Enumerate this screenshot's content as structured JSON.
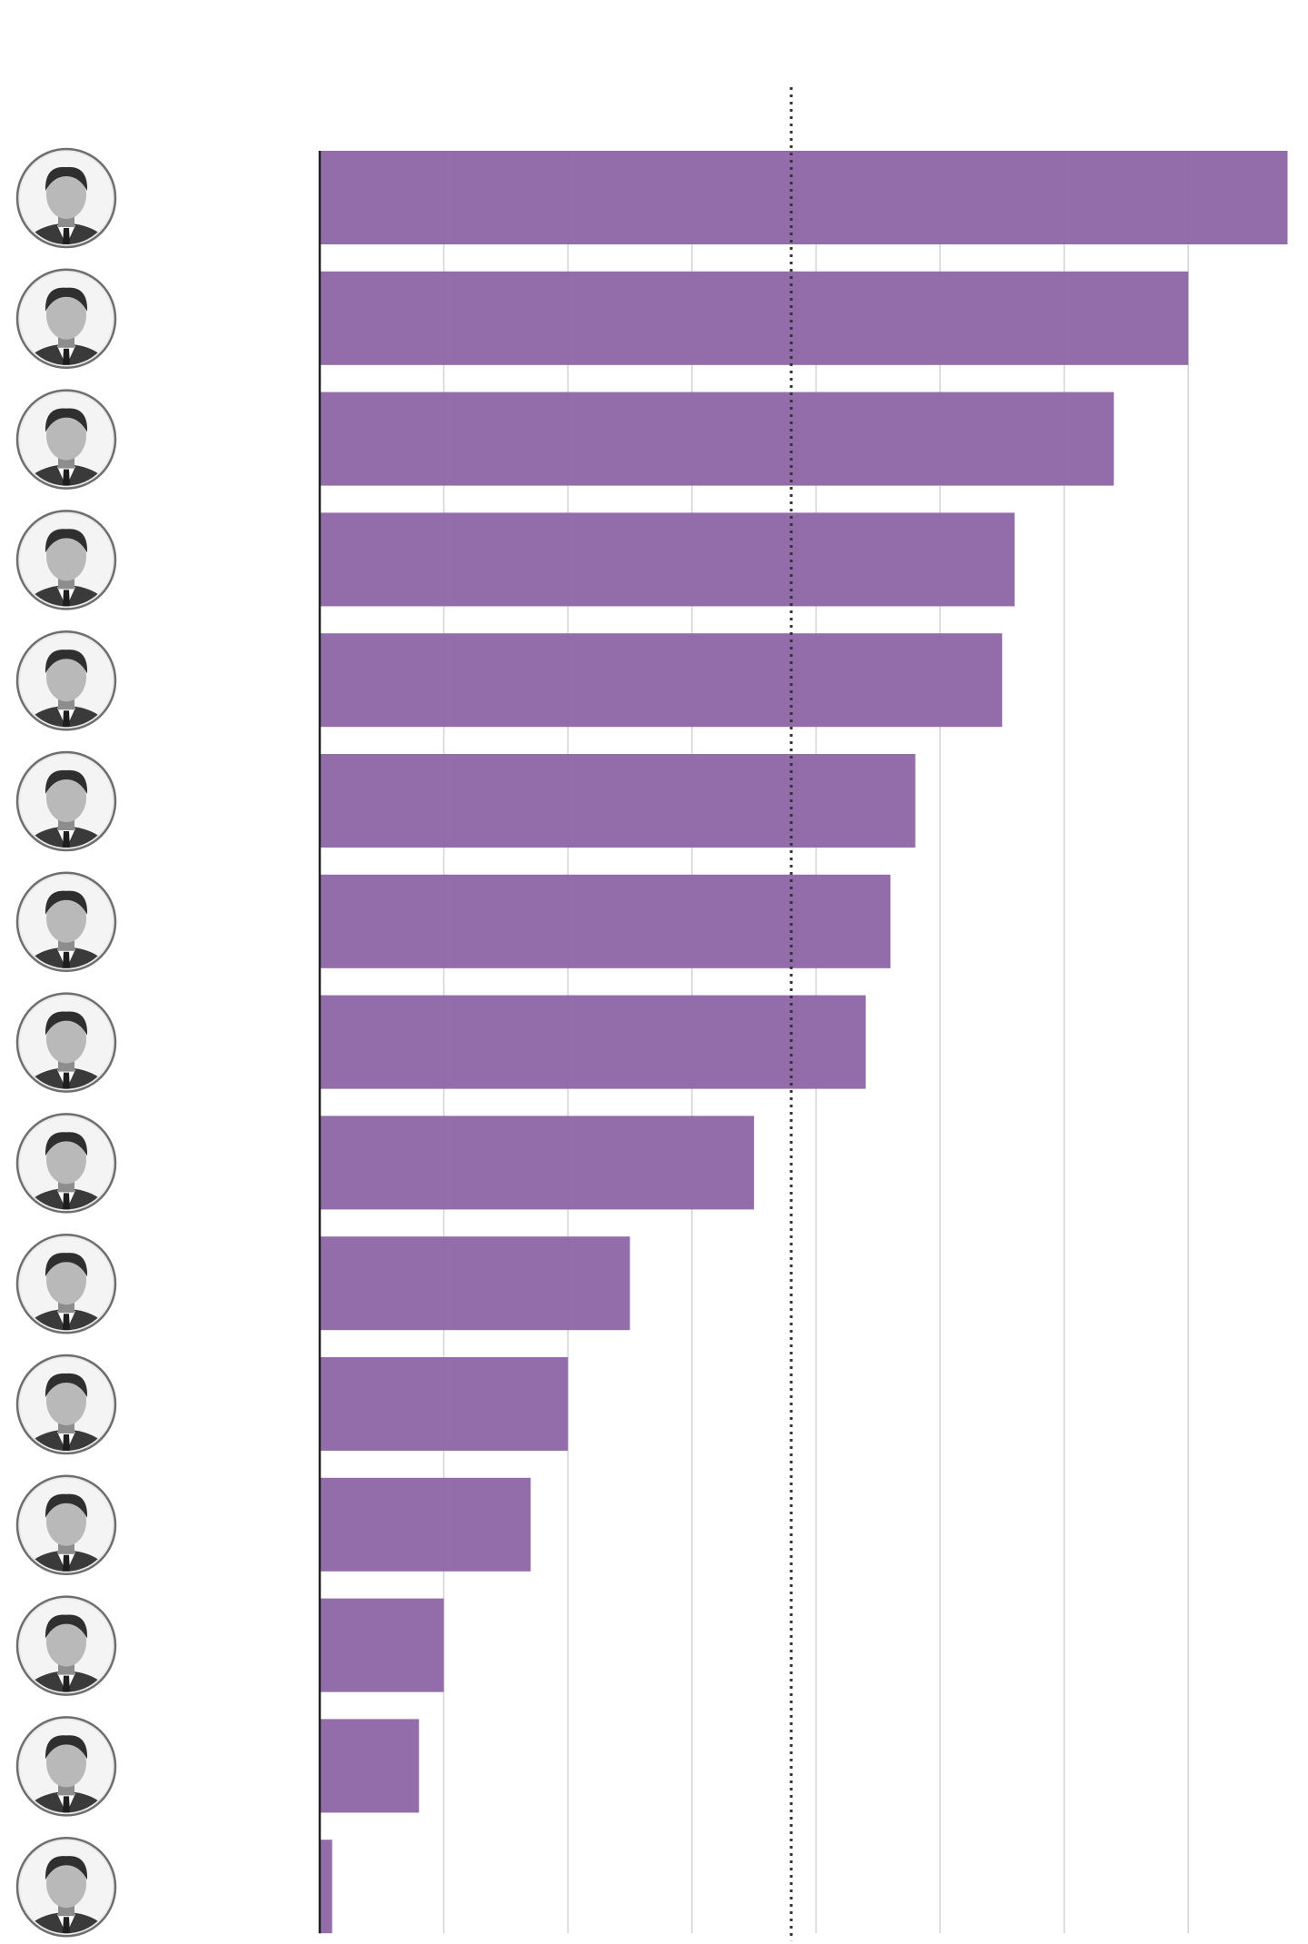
{
  "chart_data": {
    "type": "bar",
    "orientation": "horizontal",
    "categories": [
      "avatar-1",
      "avatar-2",
      "avatar-3",
      "avatar-4",
      "avatar-5",
      "avatar-6",
      "avatar-7",
      "avatar-8",
      "avatar-9",
      "avatar-10",
      "avatar-11",
      "avatar-12",
      "avatar-13",
      "avatar-14",
      "avatar-15"
    ],
    "values": [
      78,
      70,
      64,
      56,
      55,
      48,
      46,
      44,
      35,
      25,
      20,
      17,
      10,
      8,
      1
    ],
    "xlim": [
      0,
      80
    ],
    "grid_step": 10,
    "reference_line": 38,
    "grid": true,
    "legend": "none",
    "title": "",
    "xlabel": "",
    "ylabel": "",
    "colors": {
      "bar": "#8e67a5",
      "grid": "#d4d4d4",
      "axis": "#222222",
      "reference_line": "#333333"
    }
  }
}
